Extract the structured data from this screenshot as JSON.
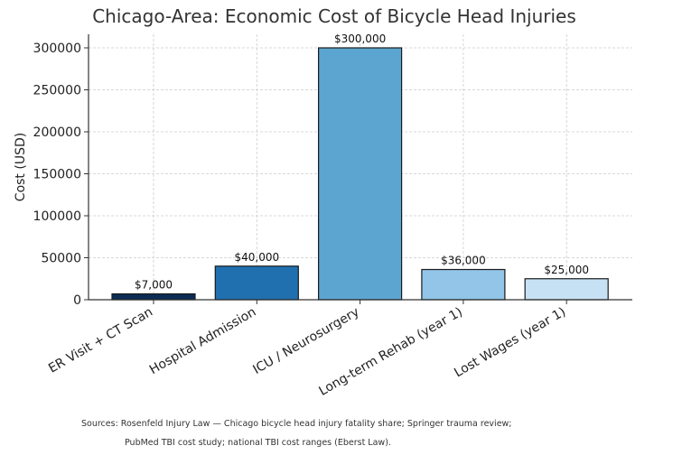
{
  "chart_data": {
    "type": "bar",
    "title": "Chicago-Area: Economic Cost of Bicycle Head Injuries",
    "xlabel": "",
    "ylabel": "Cost (USD)",
    "categories": [
      "ER Visit + CT Scan",
      "Hospital Admission",
      "ICU / Neurosurgery",
      "Long-term Rehab (year 1)",
      "Lost Wages (year 1)"
    ],
    "values": [
      7000,
      40000,
      300000,
      36000,
      25000
    ],
    "data_labels": [
      "$7,000",
      "$40,000",
      "$300,000",
      "$36,000",
      "$25,000"
    ],
    "colors": [
      "#0c2c55",
      "#2070b0",
      "#5ca5d1",
      "#92c5e8",
      "#c7e1f4"
    ],
    "ylim": [
      0,
      315000
    ],
    "yticks": [
      0,
      50000,
      100000,
      150000,
      200000,
      250000,
      300000
    ],
    "ytick_labels": [
      "0",
      "50000",
      "100000",
      "150000",
      "200000",
      "250000",
      "300000"
    ],
    "grid": true,
    "source_lines": [
      "Sources: Rosenfeld Injury Law — Chicago bicycle head injury fatality share; Springer trauma review;",
      "PubMed TBI cost study; national TBI cost ranges (Eberst Law)."
    ]
  }
}
